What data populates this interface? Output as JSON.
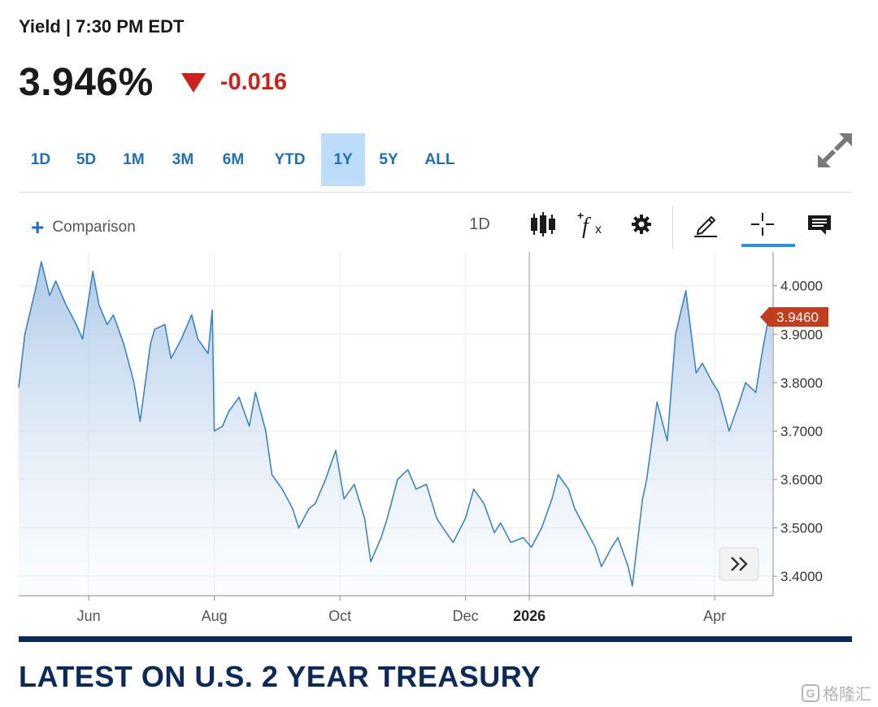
{
  "quote": {
    "label": "Yield | 7:30 PM EDT",
    "price": "3.946%",
    "change": "-0.016",
    "change_color": "#d0201a"
  },
  "range_tabs": [
    "1D",
    "5D",
    "1M",
    "3M",
    "6M",
    "YTD",
    "1Y",
    "5Y",
    "ALL"
  ],
  "active_range": "1Y",
  "toolbar": {
    "comparison_label": "Comparison",
    "interval_label": "1D",
    "icons": [
      "candlestick-icon",
      "function-icon",
      "gear-icon",
      "pencil-icon",
      "crosshair-icon",
      "comment-icon"
    ],
    "active_icon": "crosshair-icon"
  },
  "section_title": "LATEST ON U.S. 2 YEAR TREASURY",
  "watermark": "格隆汇",
  "colors": {
    "accent": "#1d70b8",
    "line": "#3a86c4",
    "down": "#d0201a",
    "navy": "#0b2a5b",
    "tab_active": "#bcdcfa"
  },
  "chart_data": {
    "type": "area",
    "x_ticks": [
      "Jun",
      "Aug",
      "Oct",
      "Dec",
      "2026",
      "Apr"
    ],
    "y_ticks": [
      "4.0000",
      "3.9000",
      "3.8000",
      "3.7000",
      "3.6000",
      "3.5000",
      "3.4000"
    ],
    "ylim": [
      3.36,
      4.07
    ],
    "last_value_label": "3.9460",
    "grid": "on",
    "series": [
      {
        "x": [
          "2025-04-28",
          "2025-05-01",
          "2025-05-06",
          "2025-05-09",
          "2025-05-13",
          "2025-05-16",
          "2025-05-21",
          "2025-05-26",
          "2025-05-29",
          "2025-06-03",
          "2025-06-06",
          "2025-06-10",
          "2025-06-13",
          "2025-06-18",
          "2025-06-23",
          "2025-06-26",
          "2025-07-01",
          "2025-07-03",
          "2025-07-08",
          "2025-07-11",
          "2025-07-16",
          "2025-07-21",
          "2025-07-24",
          "2025-07-29",
          "2025-07-31",
          "2025-08-01",
          "2025-08-05",
          "2025-08-08",
          "2025-08-13",
          "2025-08-18",
          "2025-08-21",
          "2025-08-26",
          "2025-08-29",
          "2025-09-03",
          "2025-09-08",
          "2025-09-11",
          "2025-09-16",
          "2025-09-19",
          "2025-09-24",
          "2025-09-29",
          "2025-10-03",
          "2025-10-08",
          "2025-10-13",
          "2025-10-16",
          "2025-10-21",
          "2025-10-24",
          "2025-10-29",
          "2025-11-03",
          "2025-11-07",
          "2025-11-12",
          "2025-11-17",
          "2025-11-20",
          "2025-11-25",
          "2025-12-01",
          "2025-12-05",
          "2025-12-10",
          "2025-12-15",
          "2025-12-18",
          "2025-12-23",
          "2025-12-29",
          "2026-01-02",
          "2026-01-07",
          "2026-01-12",
          "2026-01-15",
          "2026-01-20",
          "2026-01-23",
          "2026-01-28",
          "2026-02-02",
          "2026-02-05",
          "2026-02-10",
          "2026-02-13",
          "2026-02-18",
          "2026-02-20",
          "2026-02-25",
          "2026-02-27",
          "2026-03-04",
          "2026-03-09",
          "2026-03-13",
          "2026-03-18",
          "2026-03-23",
          "2026-03-26",
          "2026-03-31",
          "2026-04-03",
          "2026-04-08",
          "2026-04-13",
          "2026-04-16",
          "2026-04-21",
          "2026-04-24",
          "2026-04-27",
          "2026-04-29"
        ],
        "values": [
          3.79,
          3.9,
          3.99,
          4.05,
          3.98,
          4.01,
          3.96,
          3.92,
          3.89,
          4.03,
          3.96,
          3.92,
          3.94,
          3.88,
          3.8,
          3.72,
          3.88,
          3.91,
          3.92,
          3.85,
          3.89,
          3.94,
          3.89,
          3.86,
          3.95,
          3.7,
          3.71,
          3.74,
          3.77,
          3.71,
          3.78,
          3.7,
          3.61,
          3.58,
          3.54,
          3.5,
          3.54,
          3.55,
          3.6,
          3.66,
          3.56,
          3.59,
          3.52,
          3.43,
          3.48,
          3.52,
          3.6,
          3.62,
          3.58,
          3.59,
          3.52,
          3.5,
          3.47,
          3.52,
          3.58,
          3.55,
          3.49,
          3.51,
          3.47,
          3.48,
          3.46,
          3.5,
          3.56,
          3.61,
          3.58,
          3.54,
          3.5,
          3.46,
          3.42,
          3.46,
          3.48,
          3.42,
          3.38,
          3.56,
          3.6,
          3.76,
          3.68,
          3.9,
          3.99,
          3.82,
          3.84,
          3.8,
          3.78,
          3.7,
          3.76,
          3.8,
          3.78,
          3.86,
          3.93,
          3.946
        ]
      }
    ]
  }
}
